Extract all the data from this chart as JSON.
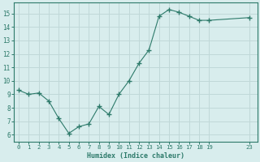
{
  "x": [
    0,
    1,
    2,
    3,
    4,
    5,
    6,
    7,
    8,
    9,
    10,
    11,
    12,
    13,
    14,
    15,
    16,
    17,
    18,
    19,
    23
  ],
  "y": [
    9.3,
    9.0,
    9.1,
    8.5,
    7.2,
    6.1,
    6.6,
    6.8,
    8.1,
    7.5,
    9.0,
    10.0,
    11.3,
    12.3,
    14.8,
    15.3,
    15.1,
    14.8,
    14.5,
    14.5,
    14.7
  ],
  "xlabel": "Humidex (Indice chaleur)",
  "xlim": [
    -0.5,
    23.8
  ],
  "ylim": [
    5.5,
    15.8
  ],
  "yticks": [
    6,
    7,
    8,
    9,
    10,
    11,
    12,
    13,
    14,
    15
  ],
  "xticks": [
    0,
    1,
    2,
    3,
    4,
    5,
    6,
    7,
    8,
    9,
    10,
    11,
    12,
    13,
    14,
    15,
    16,
    17,
    18,
    19,
    23
  ],
  "xtick_labels": [
    "0",
    "1",
    "2",
    "3",
    "4",
    "5",
    "6",
    "7",
    "8",
    "9",
    "10",
    "11",
    "12",
    "13",
    "14",
    "15",
    "16",
    "17",
    "18",
    "19",
    "23"
  ],
  "line_color": "#2d7a6a",
  "bg_color": "#d8eded",
  "grid_color": "#c0d8d8",
  "spine_color": "#2d7a6a",
  "tick_color": "#2d7a6a",
  "label_color": "#2d7a6a"
}
